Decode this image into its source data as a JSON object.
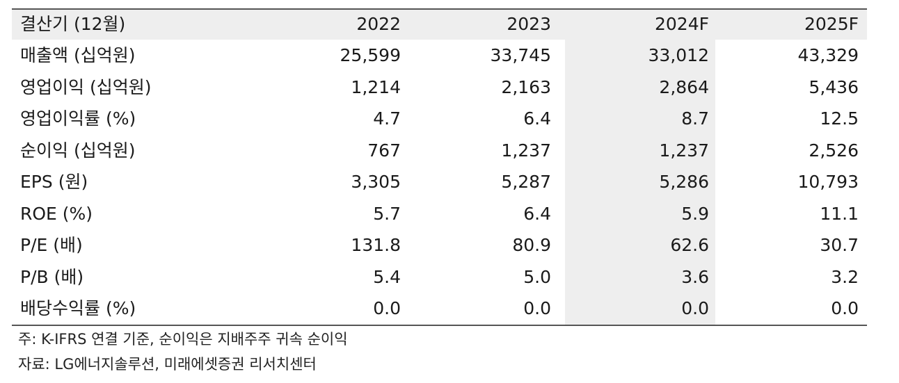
{
  "table": {
    "headers": [
      "결산기 (12월)",
      "2022",
      "2023",
      "2024F",
      "2025F"
    ],
    "rows": [
      [
        "매출액 (십억원)",
        "25,599",
        "33,745",
        "33,012",
        "43,329"
      ],
      [
        "영업이익 (십억원)",
        "1,214",
        "2,163",
        "2,864",
        "5,436"
      ],
      [
        "영업이익률 (%)",
        "4.7",
        "6.4",
        "8.7",
        "12.5"
      ],
      [
        "순이익 (십억원)",
        "767",
        "1,237",
        "1,237",
        "2,526"
      ],
      [
        "EPS (원)",
        "3,305",
        "5,287",
        "5,286",
        "10,793"
      ],
      [
        "ROE (%)",
        "5.7",
        "6.4",
        "5.9",
        "11.1"
      ],
      [
        "P/E (배)",
        "131.8",
        "80.9",
        "62.6",
        "30.7"
      ],
      [
        "P/B (배)",
        "5.4",
        "5.0",
        "3.6",
        "3.2"
      ],
      [
        "배당수익률 (%)",
        "0.0",
        "0.0",
        "0.0",
        "0.0"
      ]
    ]
  },
  "notes": {
    "note": "주: K-IFRS 연결 기준, 순이익은 지배주주 귀속 순이익",
    "source": "자료: LG에너지솔루션, 미래에셋증권 리서치센터"
  },
  "colors": {
    "shade": "#eeeeee",
    "rule": "#555555",
    "text": "#1a1a1a"
  }
}
